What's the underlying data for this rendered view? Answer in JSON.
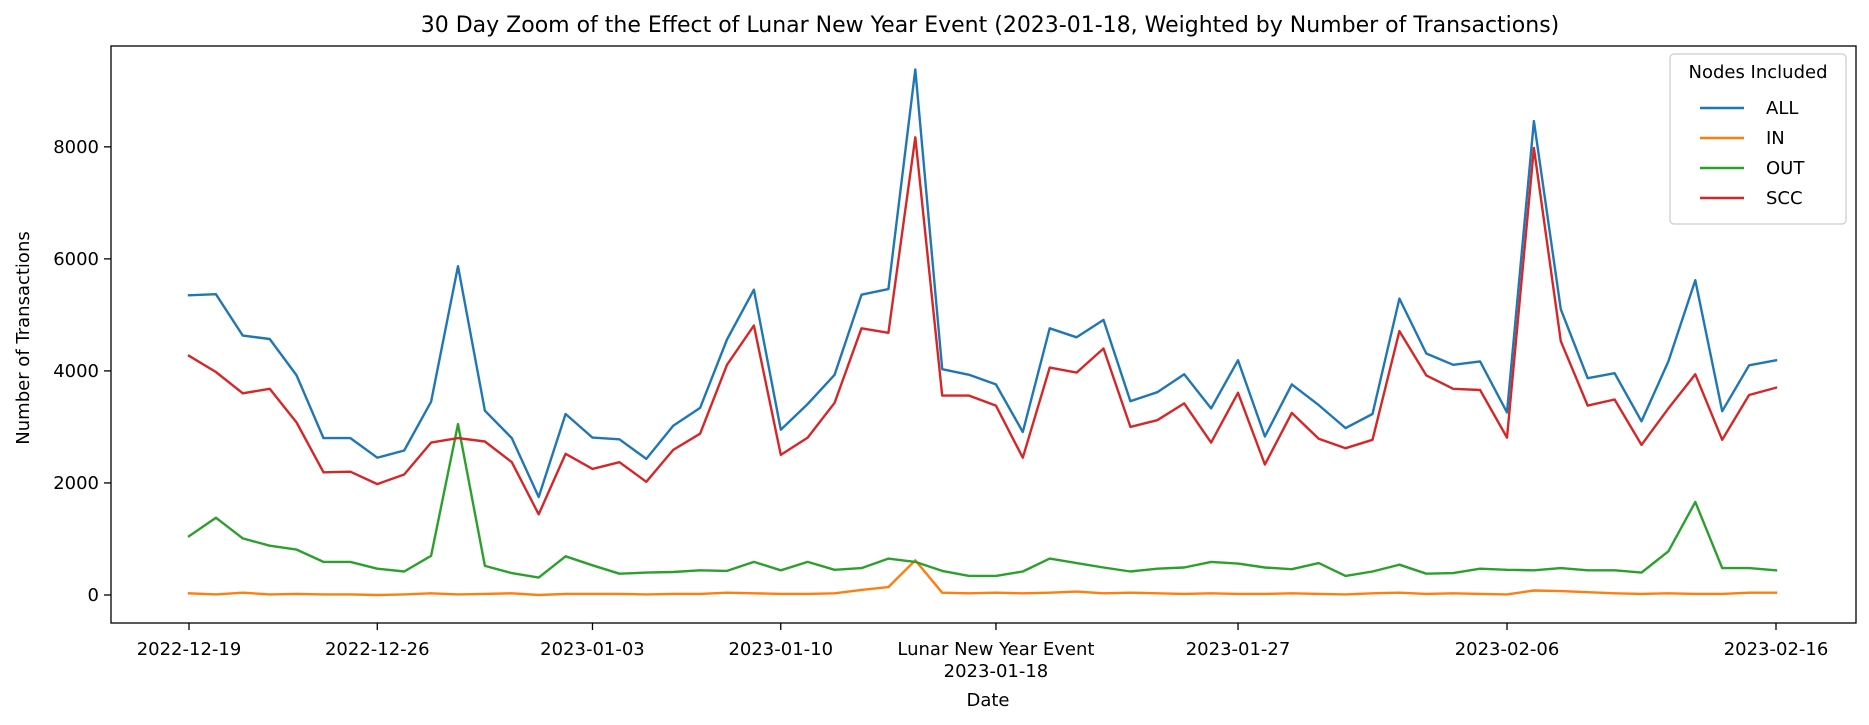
{
  "chart_data": {
    "type": "line",
    "title": "30 Day Zoom of the Effect of Lunar New Year Event (2023-01-18, Weighted by Number of Transactions)",
    "xlabel": "Date",
    "ylabel": "Number of Transactions",
    "ylim": [
      -500,
      9800
    ],
    "yticks": [
      0,
      2000,
      4000,
      6000,
      8000
    ],
    "xticks": [
      {
        "date": "2022-12-19",
        "label": "2022-12-19"
      },
      {
        "date": "2022-12-26",
        "label": "2022-12-26"
      },
      {
        "date": "2023-01-03",
        "label": "2023-01-03"
      },
      {
        "date": "2023-01-10",
        "label": "2023-01-10"
      },
      {
        "date": "2023-01-18",
        "label": "2023-01-18"
      },
      {
        "date": "2023-01-27",
        "label": "2023-01-27"
      },
      {
        "date": "2023-02-06",
        "label": "2023-02-06"
      },
      {
        "date": "2023-02-16",
        "label": "2023-02-16"
      }
    ],
    "event": {
      "date": "2023-01-18",
      "label": "Lunar New Year Event"
    },
    "legend": {
      "title": "Nodes Included",
      "placement": "top-right"
    },
    "grid": false,
    "x": [
      "2022-12-19",
      "2022-12-20",
      "2022-12-21",
      "2022-12-22",
      "2022-12-23",
      "2022-12-24",
      "2022-12-25",
      "2022-12-26",
      "2022-12-27",
      "2022-12-28",
      "2022-12-29",
      "2022-12-30",
      "2022-12-31",
      "2023-01-01",
      "2023-01-02",
      "2023-01-03",
      "2023-01-04",
      "2023-01-05",
      "2023-01-06",
      "2023-01-07",
      "2023-01-08",
      "2023-01-09",
      "2023-01-10",
      "2023-01-11",
      "2023-01-12",
      "2023-01-13",
      "2023-01-14",
      "2023-01-15",
      "2023-01-16",
      "2023-01-17",
      "2023-01-18",
      "2023-01-19",
      "2023-01-20",
      "2023-01-21",
      "2023-01-22",
      "2023-01-23",
      "2023-01-24",
      "2023-01-25",
      "2023-01-26",
      "2023-01-27",
      "2023-01-28",
      "2023-01-29",
      "2023-01-30",
      "2023-01-31",
      "2023-02-01",
      "2023-02-02",
      "2023-02-03",
      "2023-02-04",
      "2023-02-05",
      "2023-02-06",
      "2023-02-07",
      "2023-02-08",
      "2023-02-09",
      "2023-02-10",
      "2023-02-11",
      "2023-02-12",
      "2023-02-13",
      "2023-02-14",
      "2023-02-15",
      "2023-02-16"
    ],
    "series": [
      {
        "name": "ALL",
        "color": "#1f77b4",
        "values": [
          5350,
          5370,
          4630,
          4570,
          3920,
          2800,
          2800,
          2450,
          2580,
          3450,
          5870,
          3290,
          2800,
          1750,
          3230,
          2810,
          2780,
          2430,
          3020,
          3340,
          4560,
          5450,
          2950,
          3410,
          3930,
          5360,
          5460,
          9380,
          4030,
          3930,
          3760,
          2910,
          4760,
          4600,
          4910,
          3460,
          3620,
          3940,
          3330,
          4190,
          2830,
          3760,
          3390,
          2980,
          3230,
          5290,
          4310,
          4110,
          4170,
          3260,
          8460,
          5100,
          3870,
          3960,
          3100,
          4170,
          5620,
          3280,
          4100,
          4190
        ]
      },
      {
        "name": "IN",
        "color": "#ff7f0e",
        "values": [
          30,
          10,
          40,
          10,
          20,
          10,
          10,
          0,
          10,
          30,
          10,
          20,
          30,
          0,
          20,
          20,
          20,
          10,
          20,
          20,
          40,
          30,
          20,
          20,
          30,
          90,
          140,
          620,
          40,
          30,
          40,
          30,
          40,
          60,
          30,
          40,
          30,
          20,
          30,
          20,
          20,
          30,
          20,
          10,
          30,
          40,
          20,
          30,
          20,
          10,
          80,
          70,
          50,
          30,
          20,
          30,
          20,
          20,
          40,
          40
        ]
      },
      {
        "name": "OUT",
        "color": "#2ca02c",
        "values": [
          1050,
          1380,
          1010,
          880,
          810,
          590,
          590,
          470,
          420,
          700,
          3050,
          520,
          390,
          310,
          690,
          530,
          380,
          400,
          410,
          440,
          430,
          590,
          440,
          590,
          450,
          480,
          650,
          590,
          430,
          340,
          340,
          420,
          650,
          570,
          490,
          420,
          470,
          490,
          590,
          560,
          490,
          460,
          570,
          340,
          420,
          540,
          380,
          390,
          470,
          450,
          440,
          480,
          440,
          440,
          400,
          780,
          1660,
          480,
          480,
          440
        ]
      },
      {
        "name": "SCC",
        "color": "#d62728",
        "values": [
          4270,
          3980,
          3600,
          3680,
          3080,
          2190,
          2200,
          1980,
          2150,
          2720,
          2800,
          2740,
          2370,
          1440,
          2520,
          2250,
          2370,
          2020,
          2590,
          2880,
          4110,
          4810,
          2500,
          2810,
          3430,
          4760,
          4680,
          8170,
          3560,
          3560,
          3380,
          2450,
          4060,
          3970,
          4400,
          3000,
          3120,
          3420,
          2720,
          3610,
          2330,
          3250,
          2790,
          2620,
          2770,
          4710,
          3920,
          3680,
          3660,
          2810,
          7980,
          4530,
          3380,
          3490,
          2680,
          3330,
          3940,
          2770,
          3570,
          3700
        ]
      }
    ]
  }
}
